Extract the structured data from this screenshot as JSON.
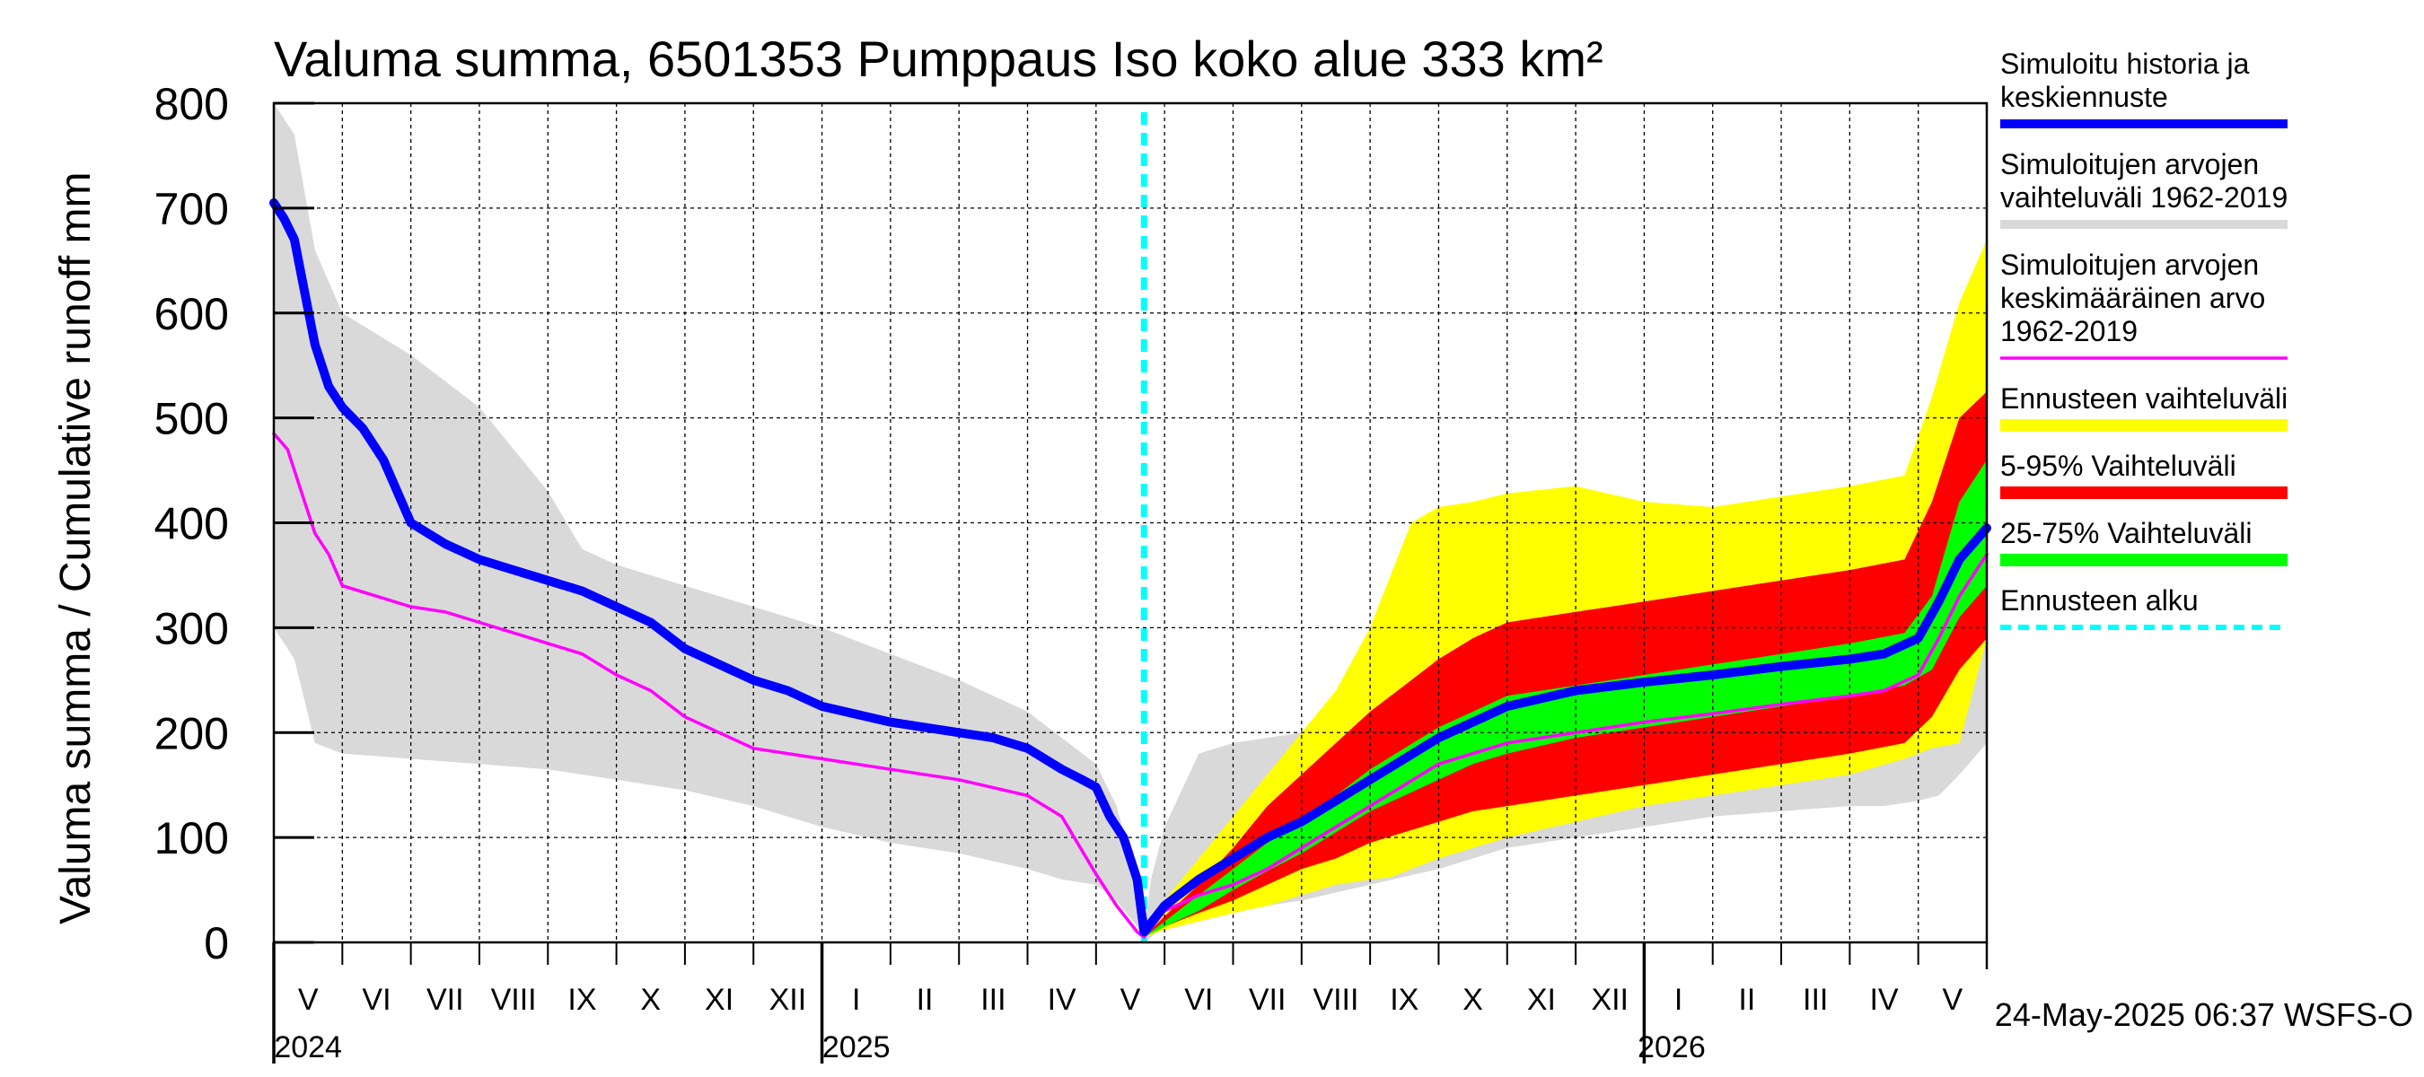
{
  "chart_data": {
    "type": "area",
    "title": "Valuma summa, 6501353 Pumppaus Iso koko alue 333 km²",
    "ylabel": "Valuma summa / Cumulative runoff    mm",
    "ylim": [
      0,
      800
    ],
    "yticks": [
      0,
      100,
      200,
      300,
      400,
      500,
      600,
      700,
      800
    ],
    "x_domain_months": [
      0,
      25
    ],
    "months": [
      {
        "label": "V",
        "x": 0.5
      },
      {
        "label": "VI",
        "x": 1.5
      },
      {
        "label": "VII",
        "x": 2.5
      },
      {
        "label": "VIII",
        "x": 3.5
      },
      {
        "label": "IX",
        "x": 4.5
      },
      {
        "label": "X",
        "x": 5.5
      },
      {
        "label": "XI",
        "x": 6.5
      },
      {
        "label": "XII",
        "x": 7.5
      },
      {
        "label": "I",
        "x": 8.5
      },
      {
        "label": "II",
        "x": 9.5
      },
      {
        "label": "III",
        "x": 10.5
      },
      {
        "label": "IV",
        "x": 11.5
      },
      {
        "label": "V",
        "x": 12.5
      },
      {
        "label": "VI",
        "x": 13.5
      },
      {
        "label": "VII",
        "x": 14.5
      },
      {
        "label": "VIII",
        "x": 15.5
      },
      {
        "label": "IX",
        "x": 16.5
      },
      {
        "label": "X",
        "x": 17.5
      },
      {
        "label": "XI",
        "x": 18.5
      },
      {
        "label": "XII",
        "x": 19.5
      },
      {
        "label": "I",
        "x": 20.5
      },
      {
        "label": "II",
        "x": 21.5
      },
      {
        "label": "III",
        "x": 22.5
      },
      {
        "label": "IV",
        "x": 23.5
      },
      {
        "label": "V",
        "x": 24.5
      }
    ],
    "years": [
      {
        "label": "2024",
        "x": 0,
        "x_label": 0.5
      },
      {
        "label": "2025",
        "x": 8,
        "x_label": 8.5
      },
      {
        "label": "2026",
        "x": 20,
        "x_label": 20.4
      }
    ],
    "forecast_start_x": 12.7,
    "series": [
      {
        "name": "hist_range",
        "kind": "band",
        "color": "#d9d9d9",
        "x": [
          0,
          0.3,
          0.6,
          1,
          2,
          3,
          4,
          4.5,
          5,
          6,
          7,
          8,
          9,
          10,
          11,
          11.5,
          12,
          12.3,
          12.6,
          12.7,
          12.8,
          13,
          13.5,
          14,
          15,
          16,
          17,
          18,
          19,
          20,
          21,
          22,
          23,
          23.5,
          24,
          24.3,
          24.6,
          25
        ],
        "upper": [
          800,
          770,
          660,
          600,
          560,
          510,
          430,
          375,
          360,
          340,
          320,
          300,
          275,
          250,
          220,
          195,
          170,
          130,
          60,
          10,
          60,
          110,
          180,
          190,
          200,
          210,
          220,
          230,
          240,
          250,
          262,
          275,
          290,
          300,
          310,
          340,
          530,
          670
        ],
        "lower": [
          300,
          270,
          190,
          180,
          175,
          170,
          165,
          160,
          155,
          145,
          130,
          110,
          95,
          85,
          70,
          60,
          55,
          40,
          15,
          0,
          5,
          15,
          25,
          30,
          40,
          55,
          70,
          90,
          100,
          110,
          120,
          125,
          130,
          130,
          135,
          140,
          160,
          190
        ]
      },
      {
        "name": "ennuste_range",
        "kind": "band",
        "color": "#ffff00",
        "x": [
          12.7,
          13,
          13.5,
          14,
          14.5,
          15,
          15.5,
          16,
          16.3,
          16.6,
          17,
          17.5,
          18,
          19,
          20,
          21,
          22,
          23,
          23.8,
          24.2,
          24.6,
          25
        ],
        "upper": [
          5,
          40,
          80,
          120,
          160,
          200,
          240,
          300,
          350,
          400,
          415,
          420,
          428,
          435,
          420,
          415,
          425,
          435,
          445,
          520,
          610,
          670
        ],
        "lower": [
          5,
          12,
          20,
          28,
          35,
          45,
          55,
          60,
          62,
          70,
          80,
          90,
          100,
          115,
          130,
          140,
          150,
          160,
          175,
          185,
          190,
          290
        ]
      },
      {
        "name": "p5_95",
        "kind": "band",
        "color": "#ff0000",
        "x": [
          12.7,
          13,
          13.5,
          14,
          14.5,
          15,
          15.5,
          16,
          16.5,
          17,
          17.5,
          18,
          19,
          20,
          21,
          22,
          23,
          23.8,
          24.2,
          24.6,
          25
        ],
        "upper": [
          5,
          25,
          55,
          90,
          130,
          160,
          190,
          220,
          245,
          270,
          290,
          305,
          315,
          325,
          335,
          345,
          355,
          365,
          420,
          500,
          525
        ],
        "lower": [
          5,
          15,
          28,
          40,
          55,
          70,
          80,
          95,
          105,
          115,
          125,
          130,
          140,
          150,
          160,
          170,
          180,
          190,
          215,
          260,
          290
        ]
      },
      {
        "name": "p25_75",
        "kind": "band",
        "color": "#00ff00",
        "x": [
          12.7,
          13,
          13.5,
          14,
          14.5,
          15,
          15.5,
          16,
          16.5,
          17,
          17.5,
          18,
          19,
          20,
          21,
          22,
          23,
          23.8,
          24.2,
          24.6,
          25
        ],
        "upper": [
          5,
          20,
          45,
          70,
          95,
          115,
          140,
          165,
          185,
          205,
          220,
          235,
          245,
          255,
          265,
          275,
          285,
          295,
          330,
          420,
          460
        ],
        "lower": [
          5,
          15,
          30,
          50,
          68,
          85,
          105,
          125,
          140,
          155,
          170,
          180,
          195,
          205,
          215,
          225,
          235,
          245,
          260,
          310,
          340
        ]
      },
      {
        "name": "Simuloitujen arvojen keskimääräinen arvo 1962-2019",
        "kind": "line",
        "color": "#ff00ff",
        "x": [
          0,
          0.2,
          0.4,
          0.6,
          0.8,
          1,
          1.5,
          2,
          2.5,
          3,
          3.5,
          4,
          4.5,
          5,
          5.5,
          6,
          6.5,
          7,
          8,
          9,
          10,
          11,
          11.5,
          12,
          12.3,
          12.6,
          12.7,
          13,
          13.5,
          14,
          14.5,
          15,
          15.5,
          16,
          16.5,
          17,
          17.5,
          18,
          19,
          20,
          21,
          22,
          23,
          23.5,
          24,
          24.3,
          24.6,
          25
        ],
        "values": [
          485,
          470,
          430,
          390,
          370,
          340,
          330,
          320,
          315,
          305,
          295,
          285,
          275,
          255,
          240,
          215,
          200,
          185,
          175,
          165,
          155,
          140,
          120,
          65,
          35,
          10,
          5,
          30,
          45,
          55,
          70,
          90,
          110,
          130,
          150,
          170,
          180,
          190,
          200,
          210,
          218,
          227,
          235,
          240,
          255,
          290,
          330,
          370
        ]
      },
      {
        "name": "Simuloitu historia ja keskiennuste",
        "kind": "line",
        "color": "#0000ff",
        "x": [
          0,
          0.15,
          0.3,
          0.45,
          0.6,
          0.8,
          1,
          1.3,
          1.6,
          2,
          2.5,
          3,
          3.5,
          4,
          4.5,
          5,
          5.5,
          6,
          6.5,
          7,
          7.5,
          8,
          9,
          10,
          10.5,
          11,
          11.5,
          11.8,
          12,
          12.2,
          12.4,
          12.6,
          12.7,
          13,
          13.5,
          14,
          14.5,
          15,
          15.5,
          16,
          16.5,
          17,
          17.5,
          18,
          19,
          20,
          21,
          22,
          23,
          23.5,
          24,
          24.3,
          24.6,
          25
        ],
        "values": [
          705,
          690,
          670,
          620,
          570,
          530,
          510,
          490,
          460,
          400,
          380,
          365,
          355,
          345,
          335,
          320,
          305,
          280,
          265,
          250,
          240,
          225,
          210,
          200,
          195,
          185,
          165,
          155,
          148,
          120,
          100,
          60,
          10,
          35,
          60,
          80,
          100,
          115,
          135,
          155,
          175,
          195,
          210,
          225,
          240,
          248,
          255,
          263,
          270,
          275,
          290,
          325,
          365,
          395
        ]
      }
    ],
    "legend": [
      {
        "text": "Simuloitu historia ja keskiennuste",
        "color": "#0000ff",
        "style": "solid"
      },
      {
        "text": "Simuloitujen arvojen vaihteluväli 1962-2019",
        "color": "#d9d9d9",
        "style": "solid"
      },
      {
        "text": "Simuloitujen arvojen keskimääräinen arvo  1962-2019",
        "color": "#ff00ff",
        "style": "thin"
      },
      {
        "text": "Ennusteen vaihteluväli",
        "color": "#ffff00",
        "style": "thick"
      },
      {
        "text": "5-95% Vaihteluväli",
        "color": "#ff0000",
        "style": "thick"
      },
      {
        "text": "25-75% Vaihteluväli",
        "color": "#00ff00",
        "style": "thick"
      },
      {
        "text": "Ennusteen alku",
        "color": "#00ffff",
        "style": "dashed"
      }
    ],
    "timestamp": "24-May-2025 06:37 WSFS-O"
  }
}
